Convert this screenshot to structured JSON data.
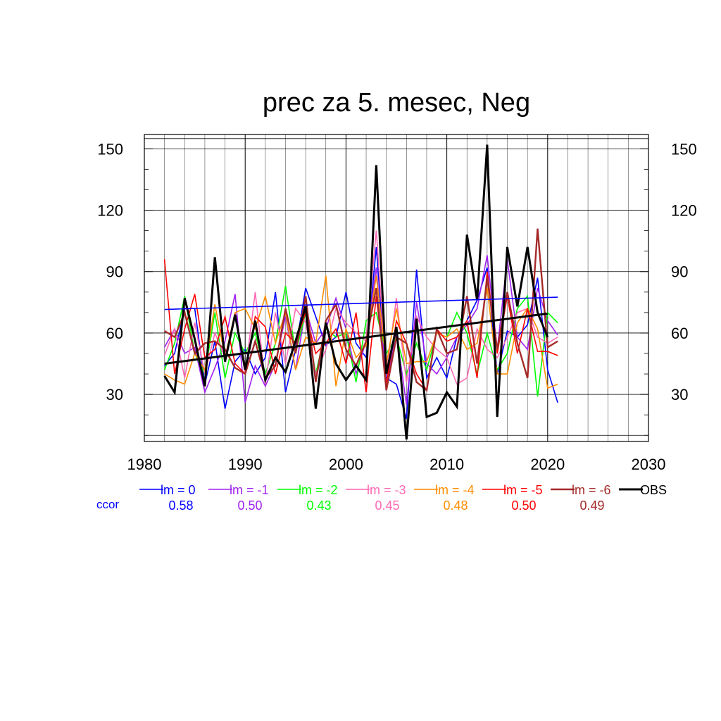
{
  "chart_data": {
    "type": "line",
    "title": "prec za 5. mesec, Neg",
    "xlim": [
      1980,
      2030
    ],
    "ylim": [
      7,
      157
    ],
    "x_ticks": [
      1980,
      1990,
      2000,
      2010,
      2020,
      2030
    ],
    "y_ticks": [
      30,
      60,
      90,
      120,
      150
    ],
    "grid": true,
    "x": [
      1982,
      1983,
      1984,
      1985,
      1986,
      1987,
      1988,
      1989,
      1990,
      1991,
      1992,
      1993,
      1994,
      1995,
      1996,
      1997,
      1998,
      1999,
      2000,
      2001,
      2002,
      2003,
      2004,
      2005,
      2006,
      2007,
      2008,
      2009,
      2010,
      2011,
      2012,
      2013,
      2014,
      2015,
      2016,
      2017,
      2018,
      2019,
      2020,
      2021
    ],
    "series": [
      {
        "name": "lm = 0",
        "color": "#0000ff",
        "width": 1.6,
        "values": [
          44,
          50,
          72,
          72,
          35,
          56,
          23,
          46,
          52,
          40,
          48,
          80,
          31,
          52,
          82,
          68,
          54,
          58,
          80,
          55,
          48,
          102,
          38,
          35,
          18,
          91,
          38,
          48,
          38,
          58,
          66,
          76,
          92,
          40,
          61,
          58,
          64,
          87,
          42,
          26
        ]
      },
      {
        "name": "lm = -1",
        "color": "#a020f0",
        "width": 1.6,
        "values": [
          53,
          62,
          50,
          53,
          31,
          43,
          56,
          79,
          26,
          44,
          34,
          45,
          68,
          42,
          72,
          55,
          62,
          77,
          62,
          40,
          56,
          92,
          35,
          60,
          25,
          75,
          45,
          40,
          48,
          58,
          64,
          72,
          98,
          52,
          96,
          58,
          52,
          82,
          66,
          59
        ]
      },
      {
        "name": "lm = -2",
        "color": "#00ff00",
        "width": 1.6,
        "values": [
          42,
          55,
          78,
          50,
          40,
          70,
          38,
          60,
          50,
          60,
          40,
          55,
          83,
          50,
          70,
          40,
          62,
          58,
          60,
          36,
          66,
          70,
          50,
          58,
          40,
          55,
          42,
          60,
          58,
          70,
          60,
          40,
          60,
          42,
          50,
          72,
          78,
          29,
          70,
          65
        ]
      },
      {
        "name": "lm = -3",
        "color": "#ff69b4",
        "width": 1.6,
        "values": [
          49,
          62,
          38,
          65,
          40,
          60,
          48,
          70,
          40,
          80,
          35,
          70,
          45,
          72,
          65,
          40,
          52,
          72,
          65,
          60,
          56,
          110,
          40,
          77,
          36,
          68,
          58,
          52,
          48,
          35,
          38,
          62,
          52,
          48,
          58,
          70,
          72,
          58,
          55,
          58
        ]
      },
      {
        "name": "lm = -4",
        "color": "#ff8c00",
        "width": 1.6,
        "values": [
          40,
          37,
          35,
          50,
          42,
          74,
          48,
          70,
          72,
          62,
          78,
          55,
          70,
          42,
          58,
          55,
          88,
          34,
          62,
          48,
          54,
          88,
          45,
          72,
          45,
          46,
          46,
          60,
          58,
          62,
          52,
          55,
          82,
          40,
          40,
          65,
          72,
          62,
          33,
          35
        ]
      },
      {
        "name": "lm = -5",
        "color": "#ff0000",
        "width": 1.6,
        "values": [
          96,
          40,
          62,
          79,
          48,
          52,
          68,
          45,
          40,
          68,
          63,
          40,
          60,
          55,
          70,
          50,
          55,
          62,
          45,
          70,
          31,
          78,
          35,
          66,
          55,
          40,
          32,
          62,
          56,
          58,
          66,
          38,
          90,
          50,
          78,
          50,
          72,
          51,
          51,
          49
        ]
      },
      {
        "name": "lm = -6",
        "color": "#a52a2a",
        "width": 2.4,
        "values": [
          61,
          58,
          70,
          50,
          55,
          56,
          52,
          43,
          40,
          56,
          38,
          44,
          72,
          50,
          78,
          36,
          66,
          74,
          52,
          44,
          56,
          82,
          32,
          58,
          55,
          36,
          32,
          62,
          50,
          52,
          78,
          45,
          87,
          52,
          80,
          55,
          38,
          111,
          53,
          56
        ]
      },
      {
        "name": "OBS",
        "color": "#000000",
        "width": 3,
        "values": [
          39,
          31,
          77,
          57,
          34,
          97,
          46,
          69,
          42,
          66,
          37,
          48,
          41,
          56,
          73,
          23,
          65,
          45,
          37,
          44,
          37,
          142,
          40,
          63,
          8,
          67,
          19,
          21,
          31,
          24,
          108,
          76,
          152,
          19,
          102,
          73,
          102,
          70,
          58,
          null
        ]
      }
    ],
    "trend_lines": [
      {
        "name": "lm = 0 trend",
        "color": "#0000ff",
        "width": 1.6,
        "x": [
          1982,
          2021
        ],
        "y": [
          71.5,
          77.5
        ]
      },
      {
        "name": "OBS trend",
        "color": "#000000",
        "width": 3,
        "x": [
          1982,
          2020
        ],
        "y": [
          45,
          69.5
        ]
      }
    ],
    "ccor": {
      "label": "ccor",
      "label_color": "#0000ff",
      "values": [
        "0.58",
        "0.50",
        "0.43",
        "0.45",
        "0.48",
        "0.50",
        "0.49"
      ]
    }
  }
}
